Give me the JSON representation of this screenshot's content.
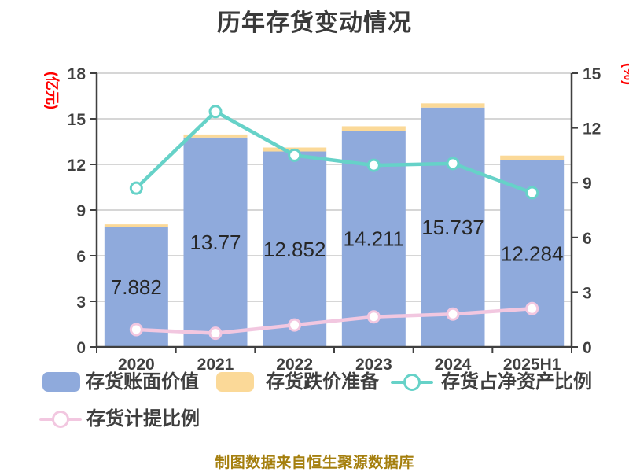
{
  "chart_data": {
    "type": "bar",
    "subtype": "stacked-bars-with-overlay-lines",
    "title": "历年存货变动情况",
    "categories": [
      "2020",
      "2021",
      "2022",
      "2023",
      "2024",
      "2025H1"
    ],
    "series": [
      {
        "name": "存货账面价值",
        "type": "bar",
        "stack": "inventory",
        "axis": "left",
        "color_key": "bar_blue",
        "values": [
          7.882,
          13.77,
          12.852,
          14.211,
          15.737,
          12.284
        ],
        "labels": [
          "7.882",
          "13.77",
          "12.852",
          "14.211",
          "15.737",
          "12.284"
        ]
      },
      {
        "name": "存货跌价准备",
        "type": "bar",
        "stack": "inventory",
        "axis": "left",
        "color_key": "bar_orange",
        "values": [
          0.18,
          0.2,
          0.26,
          0.3,
          0.28,
          0.3
        ]
      },
      {
        "name": "存货占净资产比例",
        "type": "line",
        "axis": "right",
        "color_key": "line_teal",
        "values": [
          8.7,
          12.9,
          10.5,
          9.95,
          10.05,
          8.45
        ]
      },
      {
        "name": "存货计提比例",
        "type": "line",
        "axis": "right",
        "color_key": "line_pink",
        "values": [
          0.95,
          0.75,
          1.2,
          1.65,
          1.8,
          2.1
        ]
      }
    ],
    "left_axis": {
      "label": "(亿元)",
      "min": 0,
      "max": 18,
      "step": 3,
      "ticks": [
        0,
        3,
        6,
        9,
        12,
        15,
        18
      ]
    },
    "right_axis": {
      "label": "(%)",
      "min": 0,
      "max": 15,
      "step": 3,
      "ticks": [
        0,
        3,
        6,
        9,
        12,
        15
      ]
    },
    "grid": true,
    "legend_position": "bottom"
  },
  "source_note": "制图数据来自恒生聚源数据库",
  "colors": {
    "background": "#ffffff",
    "bar_blue": "#8faadc",
    "bar_orange": "#fbd998",
    "line_teal": "#66d2c8",
    "line_pink": "#f2c7e0",
    "marker_fill": "#ffffff",
    "axis_line": "#404040",
    "axis_text": "#404040",
    "grid": "#d6d6d6",
    "bar_label": "#262626",
    "title_text": "#3a3a3a",
    "unit_red": "#ff0000",
    "source_text": "#a57f0e"
  }
}
